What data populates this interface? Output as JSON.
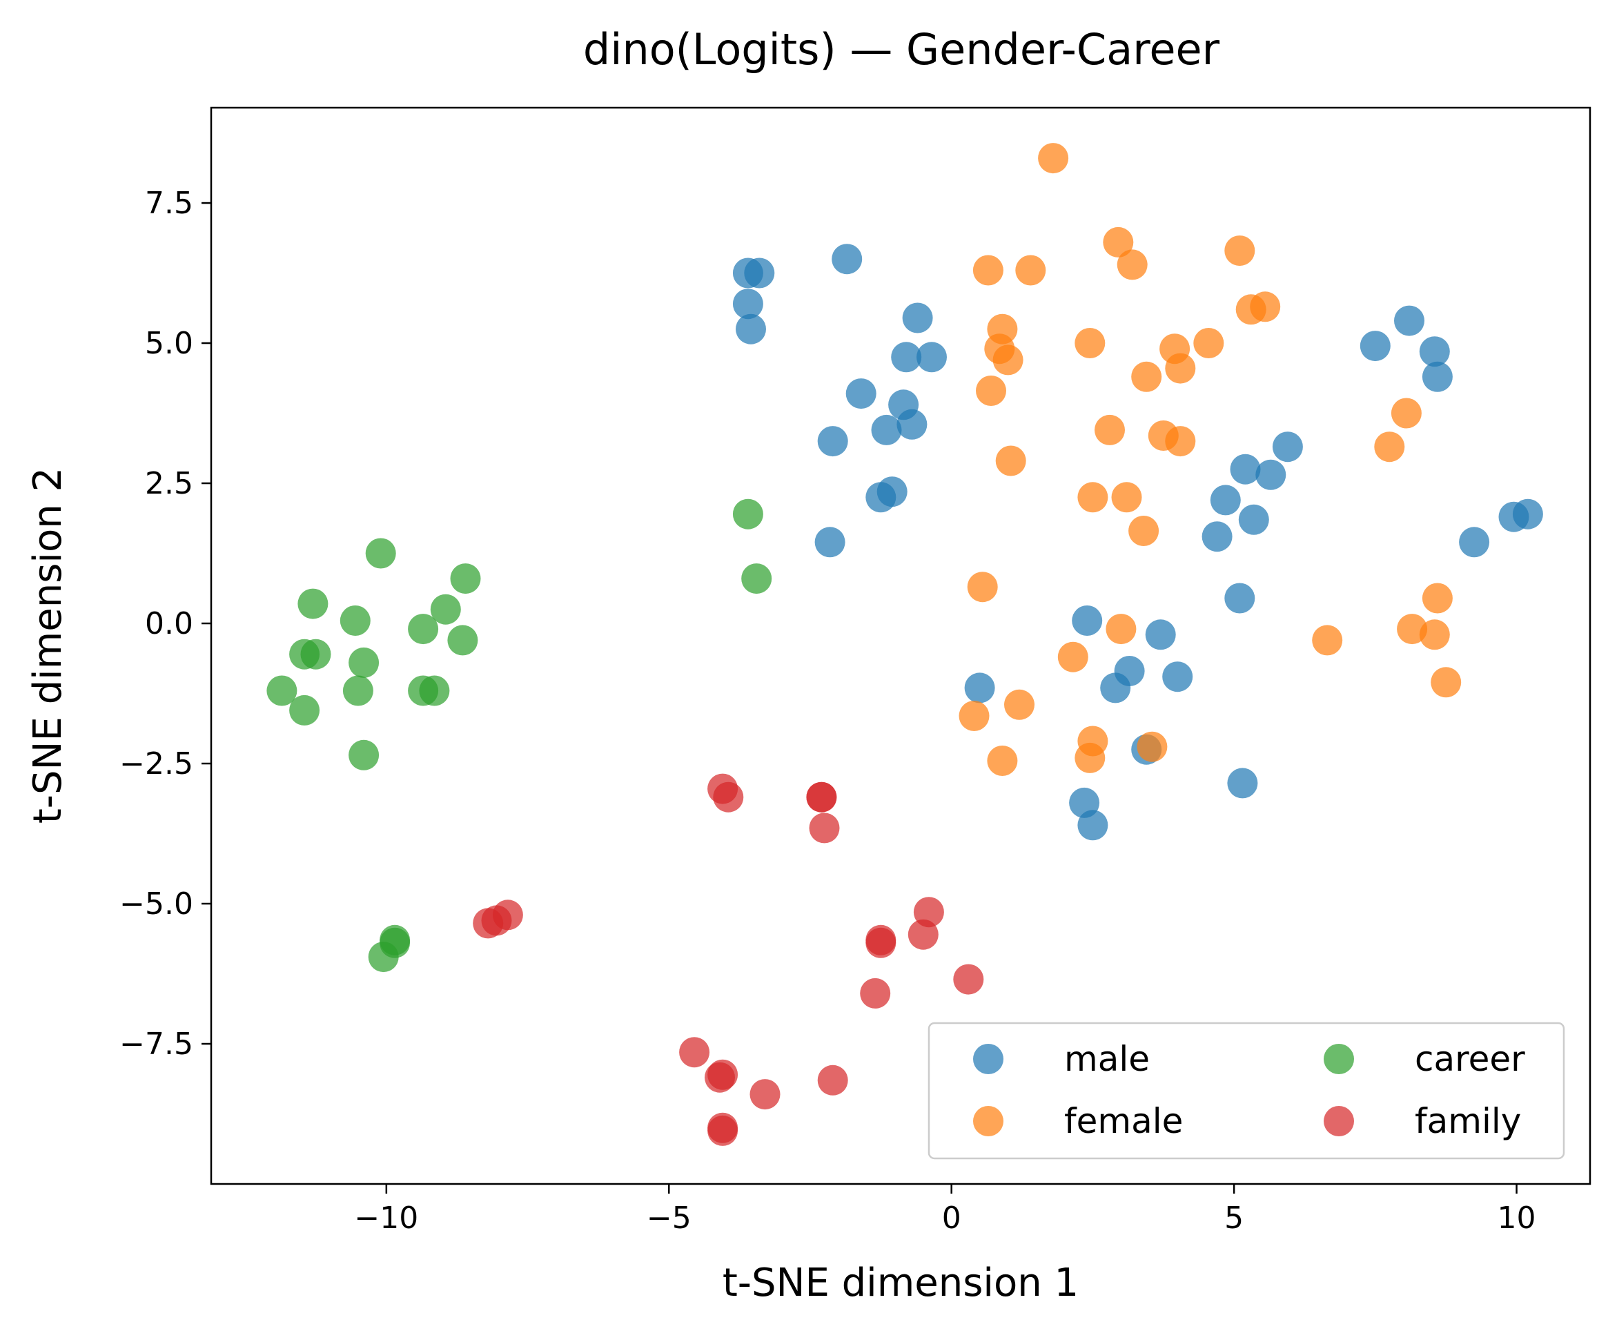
{
  "chart_data": {
    "type": "scatter",
    "title": "dino(Logits) — Gender-Career",
    "xlabel": "t-SNE dimension 1",
    "ylabel": "t-SNE dimension 2",
    "xlim": [
      -13.1,
      11.3
    ],
    "ylim": [
      -10.0,
      9.2
    ],
    "xticks": [
      -10,
      -5,
      0,
      5,
      10
    ],
    "yticks": [
      -7.5,
      -5.0,
      -2.5,
      0.0,
      2.5,
      5.0,
      7.5
    ],
    "xtick_labels": [
      "−10",
      "−5",
      "0",
      "5",
      "10"
    ],
    "ytick_labels": [
      "−7.5",
      "−5.0",
      "−2.5",
      "0.0",
      "2.5",
      "5.0",
      "7.5"
    ],
    "grid": false,
    "legend": {
      "placement": "lower-right",
      "columns": 2
    },
    "series": [
      {
        "name": "male",
        "color": "#1f77b4",
        "points": [
          [
            -3.6,
            6.25
          ],
          [
            -3.4,
            6.25
          ],
          [
            -3.6,
            5.7
          ],
          [
            -3.55,
            5.25
          ],
          [
            -1.85,
            6.5
          ],
          [
            -0.6,
            5.45
          ],
          [
            -0.8,
            4.75
          ],
          [
            -0.35,
            4.75
          ],
          [
            -1.6,
            4.1
          ],
          [
            -0.85,
            3.9
          ],
          [
            -1.15,
            3.45
          ],
          [
            -0.7,
            3.55
          ],
          [
            -2.1,
            3.25
          ],
          [
            -1.05,
            2.35
          ],
          [
            -1.25,
            2.25
          ],
          [
            -2.15,
            1.45
          ],
          [
            7.5,
            4.95
          ],
          [
            8.1,
            5.4
          ],
          [
            8.55,
            4.85
          ],
          [
            8.6,
            4.4
          ],
          [
            5.95,
            3.15
          ],
          [
            5.2,
            2.75
          ],
          [
            5.65,
            2.65
          ],
          [
            4.85,
            2.2
          ],
          [
            5.35,
            1.85
          ],
          [
            4.7,
            1.55
          ],
          [
            10.2,
            1.95
          ],
          [
            9.95,
            1.9
          ],
          [
            9.25,
            1.45
          ],
          [
            5.1,
            0.45
          ],
          [
            2.4,
            0.05
          ],
          [
            3.7,
            -0.2
          ],
          [
            3.15,
            -0.85
          ],
          [
            2.9,
            -1.15
          ],
          [
            4.0,
            -0.95
          ],
          [
            0.5,
            -1.15
          ],
          [
            3.45,
            -2.25
          ],
          [
            5.15,
            -2.85
          ],
          [
            2.35,
            -3.2
          ],
          [
            2.5,
            -3.6
          ]
        ]
      },
      {
        "name": "female",
        "color": "#ff7f0e",
        "points": [
          [
            1.8,
            8.3
          ],
          [
            0.65,
            6.3
          ],
          [
            1.4,
            6.3
          ],
          [
            2.95,
            6.8
          ],
          [
            3.2,
            6.4
          ],
          [
            5.1,
            6.65
          ],
          [
            5.3,
            5.6
          ],
          [
            5.55,
            5.65
          ],
          [
            0.9,
            5.25
          ],
          [
            0.85,
            4.9
          ],
          [
            1.0,
            4.7
          ],
          [
            2.45,
            5.0
          ],
          [
            3.95,
            4.9
          ],
          [
            4.55,
            5.0
          ],
          [
            4.05,
            4.55
          ],
          [
            3.45,
            4.4
          ],
          [
            0.7,
            4.15
          ],
          [
            8.05,
            3.75
          ],
          [
            2.8,
            3.45
          ],
          [
            3.75,
            3.35
          ],
          [
            4.05,
            3.25
          ],
          [
            7.75,
            3.15
          ],
          [
            1.05,
            2.9
          ],
          [
            2.5,
            2.25
          ],
          [
            3.1,
            2.25
          ],
          [
            3.4,
            1.65
          ],
          [
            0.55,
            0.65
          ],
          [
            8.6,
            0.45
          ],
          [
            8.15,
            -0.1
          ],
          [
            8.55,
            -0.2
          ],
          [
            3.0,
            -0.1
          ],
          [
            6.65,
            -0.3
          ],
          [
            2.15,
            -0.6
          ],
          [
            8.75,
            -1.05
          ],
          [
            1.2,
            -1.45
          ],
          [
            0.4,
            -1.65
          ],
          [
            2.5,
            -2.1
          ],
          [
            3.55,
            -2.2
          ],
          [
            2.45,
            -2.4
          ],
          [
            0.9,
            -2.45
          ]
        ]
      },
      {
        "name": "career",
        "color": "#2ca02c",
        "points": [
          [
            -3.6,
            1.95
          ],
          [
            -3.45,
            0.8
          ],
          [
            -10.1,
            1.25
          ],
          [
            -8.6,
            0.8
          ],
          [
            -11.3,
            0.35
          ],
          [
            -8.95,
            0.25
          ],
          [
            -10.55,
            0.05
          ],
          [
            -9.35,
            -0.1
          ],
          [
            -8.65,
            -0.3
          ],
          [
            -11.45,
            -0.55
          ],
          [
            -11.25,
            -0.55
          ],
          [
            -10.4,
            -0.7
          ],
          [
            -11.85,
            -1.2
          ],
          [
            -10.5,
            -1.2
          ],
          [
            -9.35,
            -1.2
          ],
          [
            -9.15,
            -1.2
          ],
          [
            -11.45,
            -1.55
          ],
          [
            -10.4,
            -2.35
          ],
          [
            -9.85,
            -5.65
          ],
          [
            -9.85,
            -5.7
          ],
          [
            -10.05,
            -5.95
          ]
        ]
      },
      {
        "name": "family",
        "color": "#d62728",
        "points": [
          [
            -4.05,
            -2.95
          ],
          [
            -3.95,
            -3.1
          ],
          [
            -2.3,
            -3.1
          ],
          [
            -2.3,
            -3.1
          ],
          [
            -2.25,
            -3.65
          ],
          [
            -7.85,
            -5.2
          ],
          [
            -8.05,
            -5.3
          ],
          [
            -8.2,
            -5.35
          ],
          [
            -0.4,
            -5.15
          ],
          [
            -0.5,
            -5.55
          ],
          [
            -1.25,
            -5.65
          ],
          [
            -1.25,
            -5.7
          ],
          [
            0.3,
            -6.35
          ],
          [
            -1.35,
            -6.6
          ],
          [
            -4.55,
            -7.65
          ],
          [
            -4.05,
            -8.05
          ],
          [
            -4.1,
            -8.1
          ],
          [
            -2.1,
            -8.15
          ],
          [
            -3.3,
            -8.4
          ],
          [
            -4.05,
            -9.0
          ],
          [
            -4.05,
            -9.05
          ]
        ]
      }
    ]
  }
}
